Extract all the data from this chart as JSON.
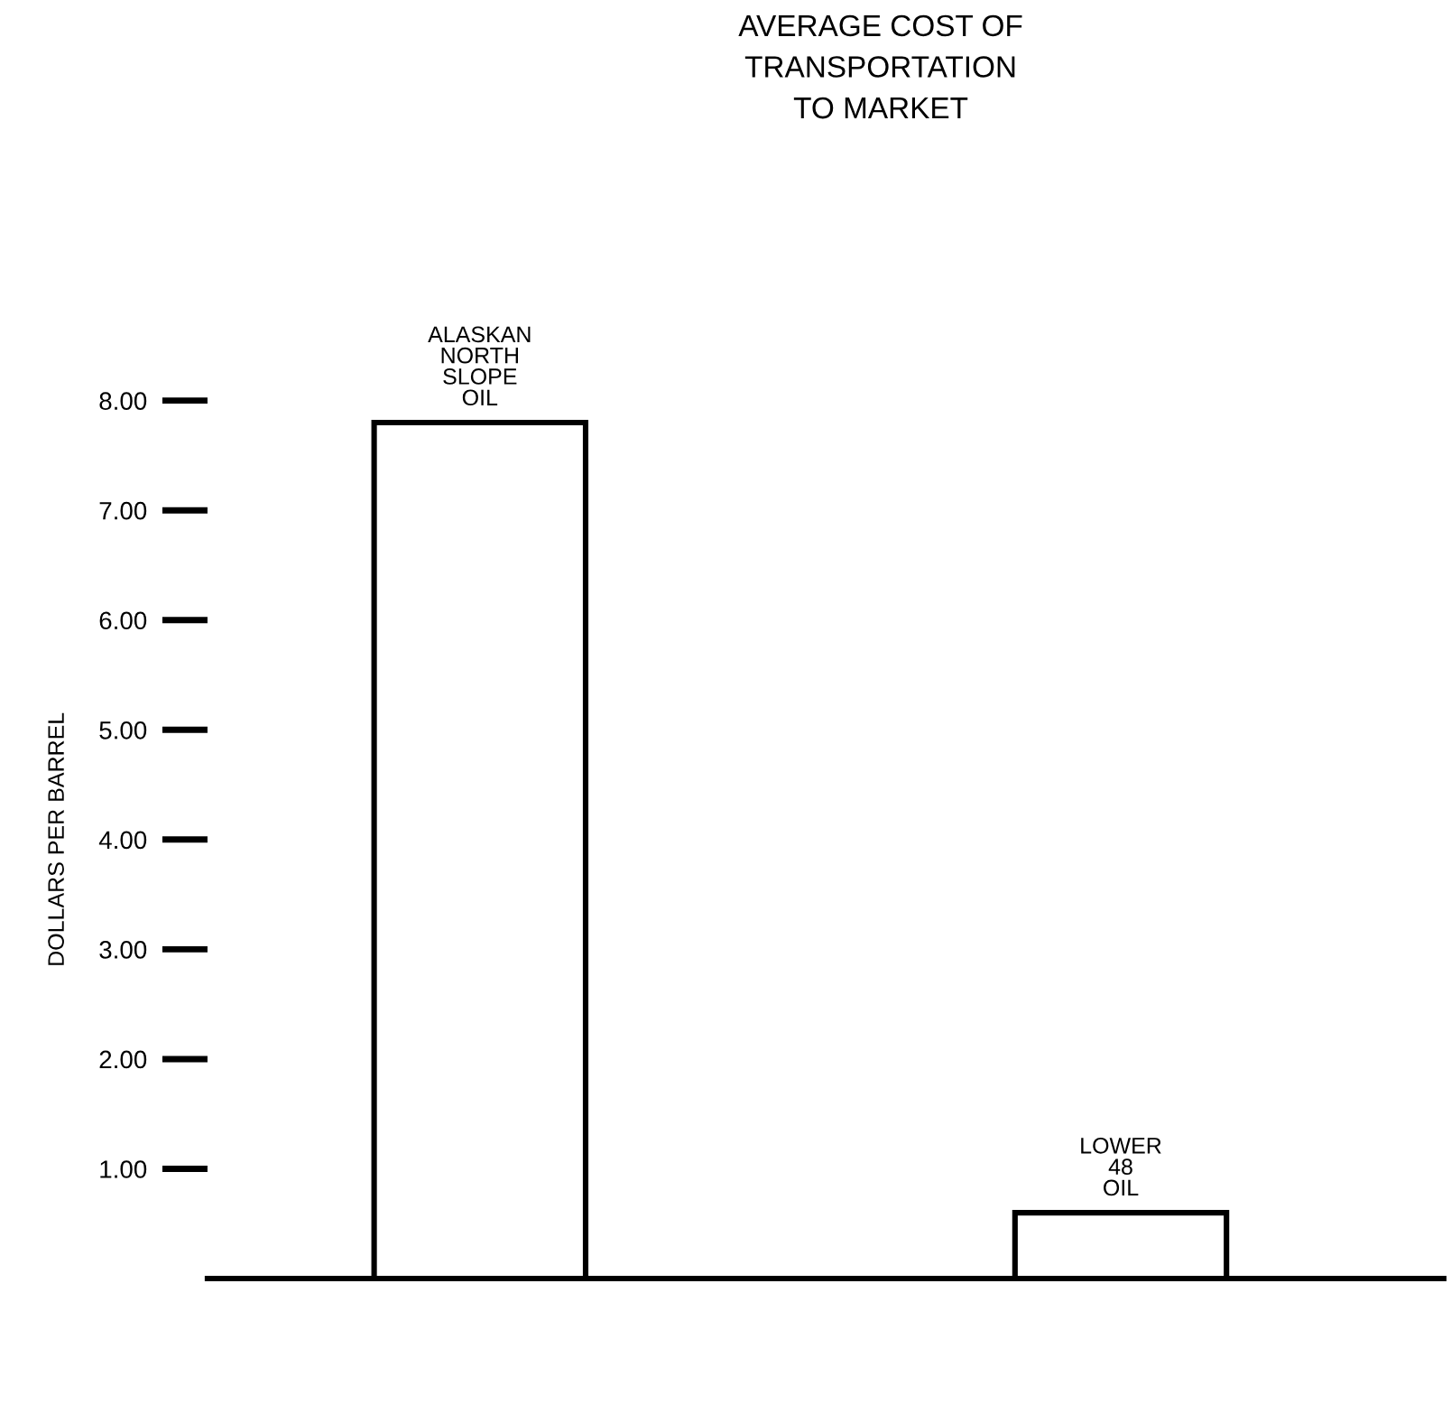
{
  "chart_data": {
    "type": "bar",
    "title": "AVERAGE COST OF\nTRANSPORTATION\nTO MARKET",
    "ylabel": "DOLLARS PER BARREL",
    "categories": [
      "ALASKAN\nNORTH\nSLOPE\nOIL",
      "LOWER\n48\nOIL"
    ],
    "values": [
      7.8,
      0.6
    ],
    "color": "#ffffff",
    "ylim": [
      0,
      8
    ],
    "yticks": [
      {
        "value": 1,
        "label": "1.00"
      },
      {
        "value": 2,
        "label": "2.00"
      },
      {
        "value": 3,
        "label": "3.00"
      },
      {
        "value": 4,
        "label": "4.00"
      },
      {
        "value": 5,
        "label": "5.00"
      },
      {
        "value": 6,
        "label": "6.00"
      },
      {
        "value": 7,
        "label": "7.00"
      },
      {
        "value": 8,
        "label": "8.00"
      }
    ],
    "grid": false,
    "legend": false
  }
}
